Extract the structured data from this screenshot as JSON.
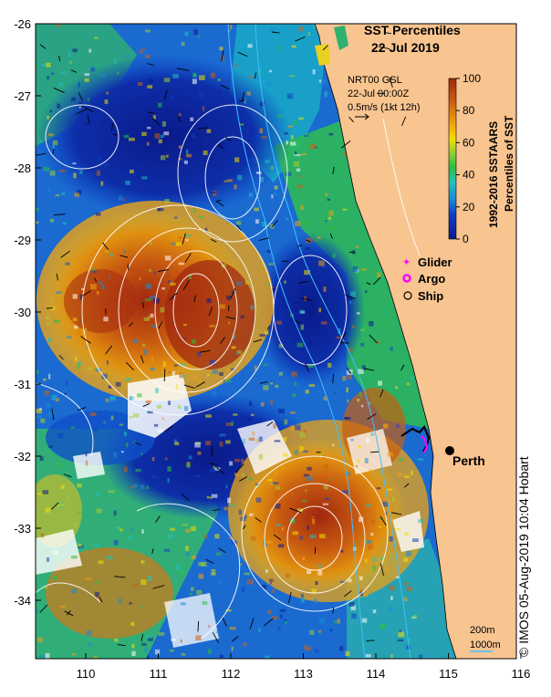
{
  "title": {
    "line1": "SST Percentiles",
    "line2": "22 Jul 2019"
  },
  "current_info": {
    "line1": "NRT00 GSL",
    "line2": "22-Jul 00:00Z",
    "line3": "0.5m/s (1kt 12h)"
  },
  "colorbar": {
    "ticks": [
      "100",
      "80",
      "60",
      "40",
      "20",
      "0"
    ],
    "label_line1": "1992-2016 SSTAARS",
    "label_line2": "Percentiles of SST",
    "colors": [
      "#0a1a8a",
      "#0d3fc4",
      "#1a8ad8",
      "#22c0c0",
      "#2ec040",
      "#a0d030",
      "#f0e000",
      "#f0a010",
      "#d06010",
      "#a02810"
    ]
  },
  "legend": [
    {
      "label": "Glider",
      "symbol": "star",
      "color": "#ff00ff"
    },
    {
      "label": "Argo",
      "symbol": "circle",
      "color": "#ff00ff"
    },
    {
      "label": "Ship",
      "symbol": "circle-open",
      "color": "#000000"
    }
  ],
  "y_ticks": [
    "-26",
    "-27",
    "-28",
    "-29",
    "-30",
    "-31",
    "-32",
    "-33",
    "-34"
  ],
  "x_ticks": [
    "110",
    "111",
    "112",
    "113",
    "114",
    "115",
    "116"
  ],
  "place": {
    "label": "Perth"
  },
  "scale": {
    "line1": "200m",
    "line2": "1000m"
  },
  "credit": "© IMOS 05-Aug-2019 10:04 Hobart",
  "colors": {
    "land": "#f8c490",
    "frame": "#000000",
    "contour": "#ffffff",
    "isobath": "#40c0ff"
  }
}
